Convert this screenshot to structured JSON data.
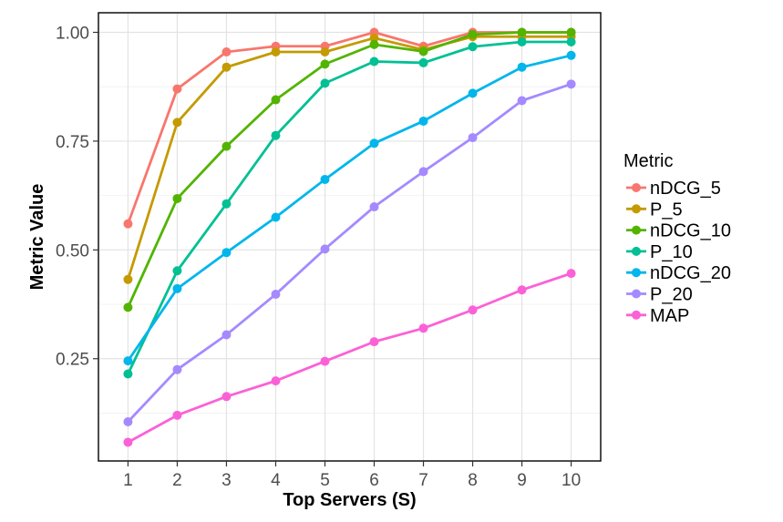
{
  "chart_data": {
    "type": "line",
    "xlabel": "Top Servers (S)",
    "ylabel": "Metric Value",
    "x": [
      1,
      2,
      3,
      4,
      5,
      6,
      7,
      8,
      9,
      10
    ],
    "xticks": [
      "1",
      "2",
      "3",
      "4",
      "5",
      "6",
      "7",
      "8",
      "9",
      "10"
    ],
    "yticks": [
      "0.25",
      "0.50",
      "0.75",
      "1.00"
    ],
    "xlim": [
      0.4,
      10.6
    ],
    "ylim": [
      0.015,
      1.045
    ],
    "grid": true,
    "legend": {
      "title": "Metric",
      "position": "right"
    },
    "series": [
      {
        "name": "nDCG_5",
        "color": "#F8766D",
        "values": [
          0.56,
          0.87,
          0.955,
          0.968,
          0.968,
          1.0,
          0.968,
          1.0,
          1.0,
          1.0
        ]
      },
      {
        "name": "P_5",
        "color": "#C49A00",
        "values": [
          0.432,
          0.793,
          0.92,
          0.955,
          0.955,
          0.987,
          0.96,
          0.99,
          0.99,
          0.99
        ]
      },
      {
        "name": "nDCG_10",
        "color": "#53B400",
        "values": [
          0.368,
          0.618,
          0.738,
          0.845,
          0.927,
          0.972,
          0.956,
          0.995,
          1.0,
          1.0
        ]
      },
      {
        "name": "P_10",
        "color": "#00C094",
        "values": [
          0.215,
          0.452,
          0.606,
          0.763,
          0.883,
          0.933,
          0.93,
          0.967,
          0.978,
          0.978
        ]
      },
      {
        "name": "nDCG_20",
        "color": "#00B6EB",
        "values": [
          0.245,
          0.411,
          0.494,
          0.575,
          0.662,
          0.745,
          0.796,
          0.86,
          0.92,
          0.947
        ]
      },
      {
        "name": "P_20",
        "color": "#A58AFF",
        "values": [
          0.105,
          0.225,
          0.305,
          0.398,
          0.502,
          0.599,
          0.68,
          0.758,
          0.843,
          0.881
        ]
      },
      {
        "name": "MAP",
        "color": "#FB61D7",
        "values": [
          0.058,
          0.12,
          0.163,
          0.199,
          0.244,
          0.289,
          0.32,
          0.362,
          0.408,
          0.446
        ]
      }
    ]
  }
}
